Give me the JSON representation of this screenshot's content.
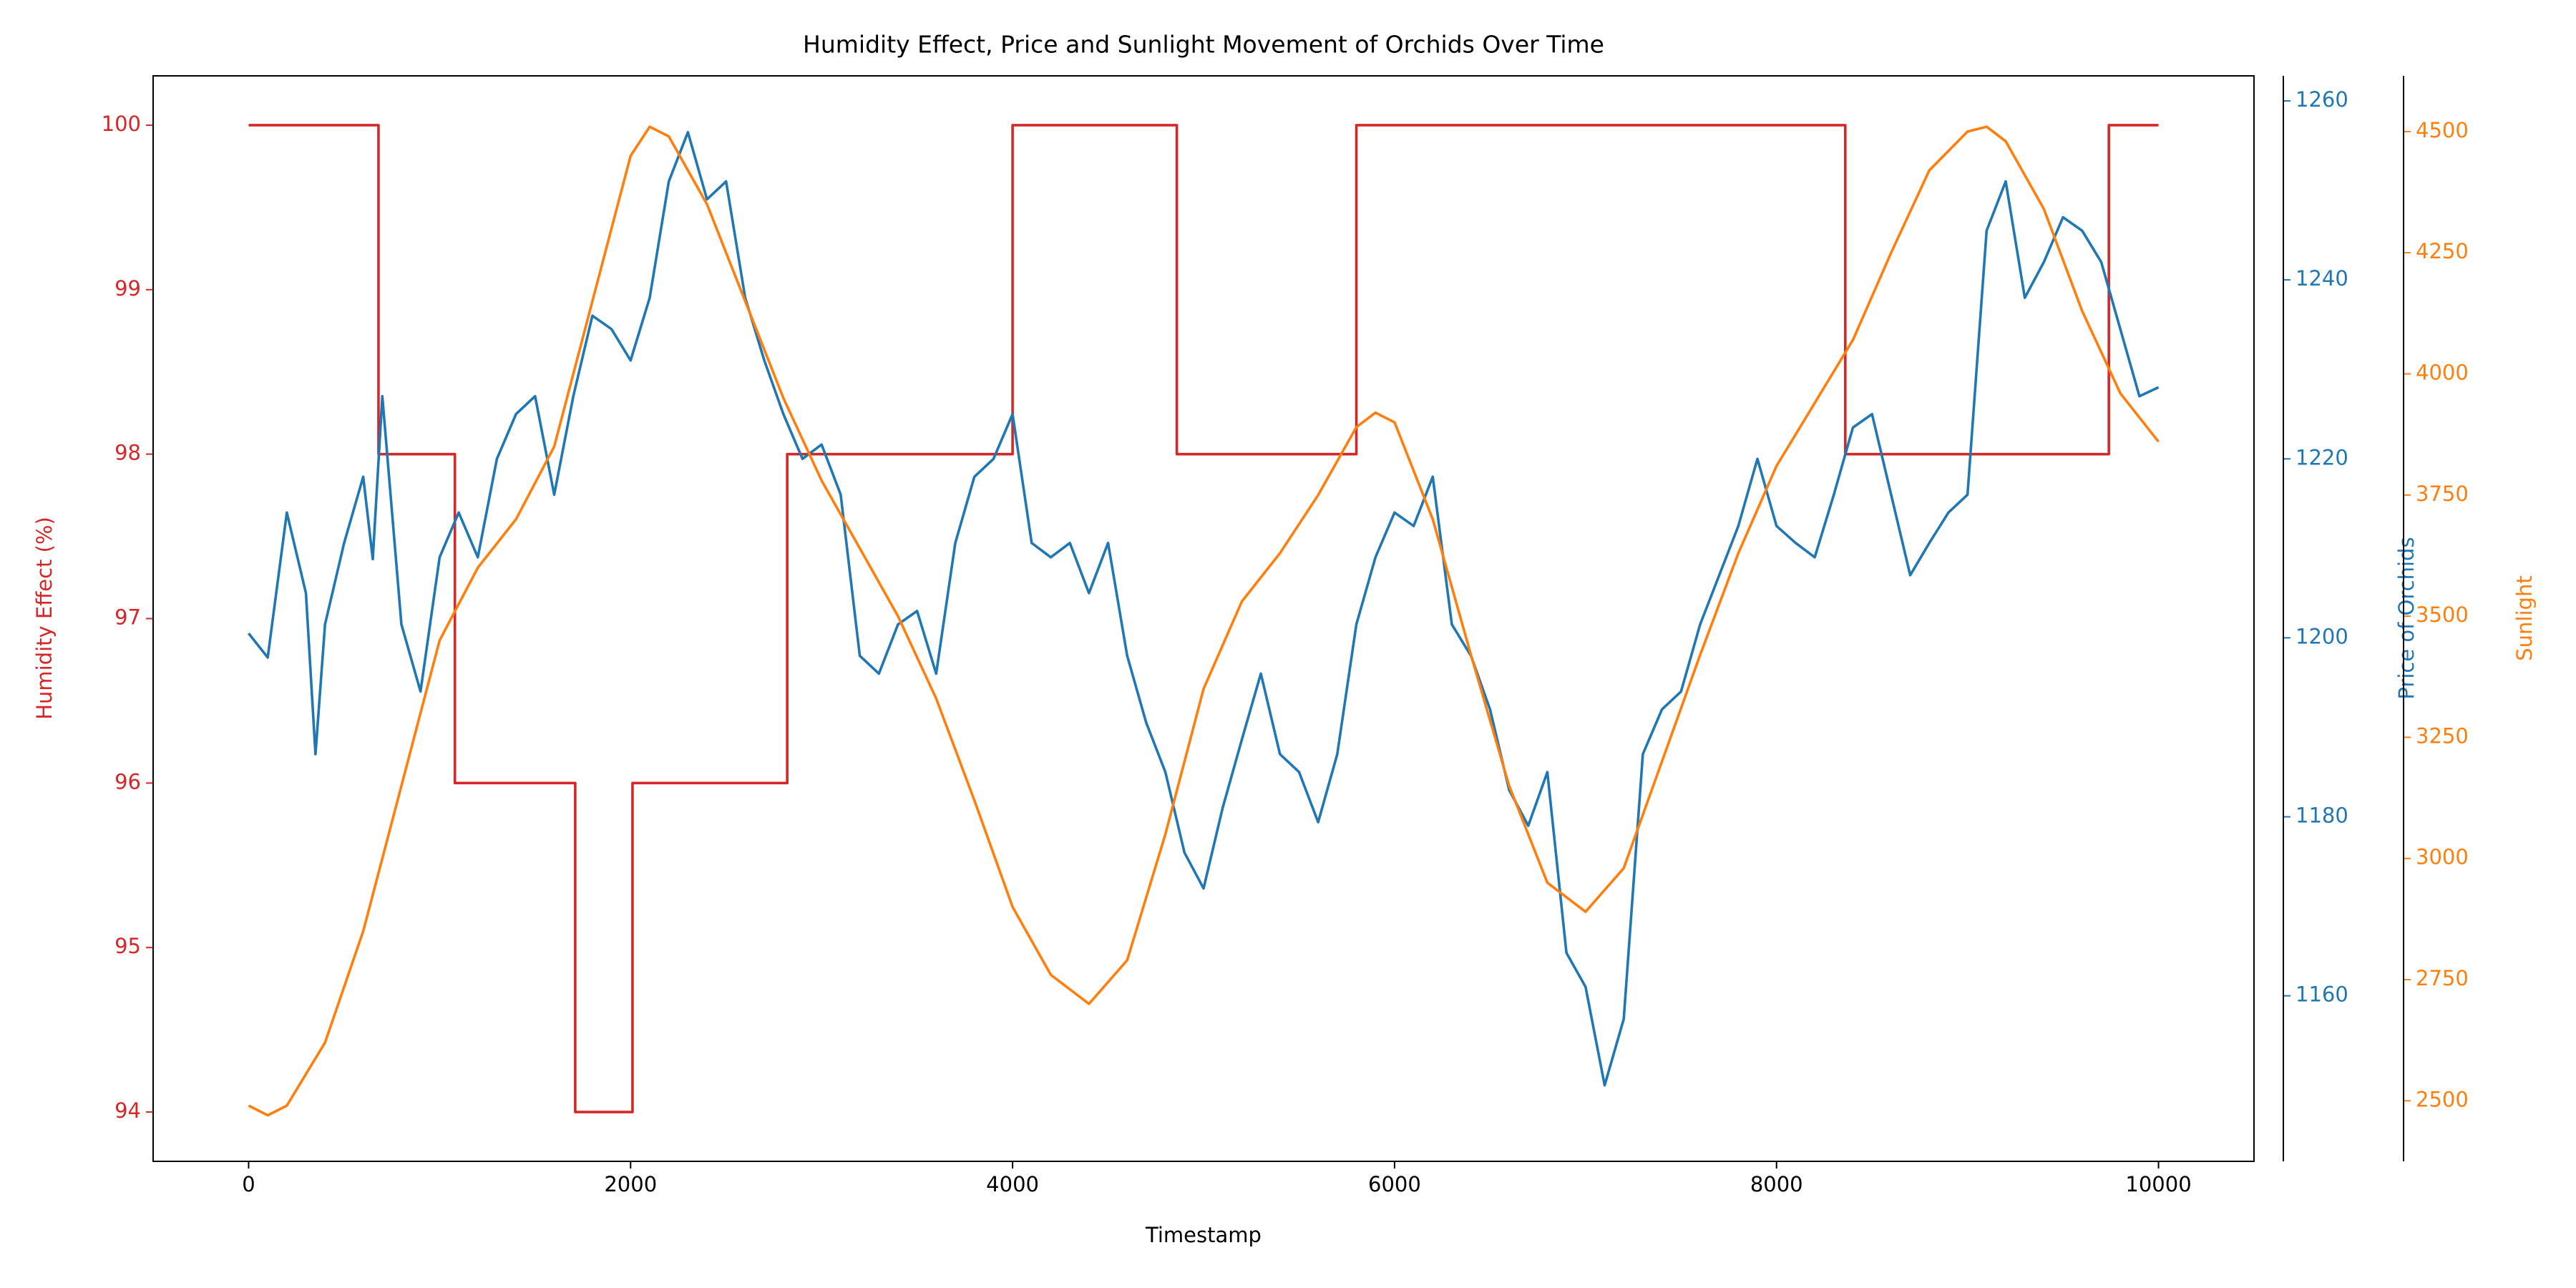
{
  "chart_data": {
    "type": "line",
    "title": "Humidity Effect, Price and Sunlight Movement of Orchids Over Time",
    "xlabel": "Timestamp",
    "ylabel": "Humidity Effect (%)",
    "y2label": "Price of Orchids",
    "y3label": "Sunlight",
    "xlim": [
      -500,
      10500
    ],
    "xticks": [
      0,
      2000,
      4000,
      6000,
      8000,
      10000
    ],
    "ylim": [
      93.7,
      100.3
    ],
    "yticks": [
      94,
      95,
      96,
      97,
      98,
      99,
      100
    ],
    "y2lim": [
      1141.5,
      1262.8
    ],
    "y2ticks": [
      1160,
      1180,
      1200,
      1220,
      1240,
      1260
    ],
    "y3lim": [
      2375,
      4615
    ],
    "y3ticks": [
      2500,
      2750,
      3000,
      3250,
      3500,
      3750,
      4000,
      4250,
      4500
    ],
    "series": [
      {
        "name": "Humidity Effect (%)",
        "color": "#d62728",
        "axis": "y",
        "drawstyle": "steps-post",
        "x": [
          0,
          680,
          1080,
          1710,
          2010,
          2820,
          4000,
          4860,
          5800,
          8360,
          9740,
          10000
        ],
        "values": [
          100,
          98,
          96,
          94,
          96,
          98,
          100,
          98,
          100,
          98,
          100,
          100
        ]
      },
      {
        "name": "Price of Orchids",
        "color": "#1f77b4",
        "axis": "y2",
        "x": [
          0,
          100,
          200,
          300,
          350,
          400,
          500,
          600,
          650,
          700,
          800,
          900,
          1000,
          1100,
          1200,
          1300,
          1400,
          1500,
          1600,
          1700,
          1800,
          1900,
          2000,
          2100,
          2200,
          2300,
          2400,
          2500,
          2600,
          2700,
          2800,
          2900,
          3000,
          3100,
          3200,
          3300,
          3400,
          3500,
          3600,
          3700,
          3800,
          3900,
          4000,
          4100,
          4200,
          4300,
          4400,
          4500,
          4600,
          4700,
          4800,
          4900,
          5000,
          5100,
          5200,
          5300,
          5400,
          5500,
          5600,
          5700,
          5800,
          5900,
          6000,
          6100,
          6200,
          6300,
          6400,
          6500,
          6600,
          6700,
          6800,
          6900,
          7000,
          7100,
          7200,
          7300,
          7400,
          7500,
          7600,
          7700,
          7800,
          7900,
          8000,
          8100,
          8200,
          8300,
          8400,
          8500,
          8600,
          8700,
          8800,
          8900,
          9000,
          9100,
          9200,
          9300,
          9400,
          9500,
          9600,
          9700,
          9800,
          9900,
          10000
        ],
        "values": [
          1200.5,
          1197.8,
          1214,
          1205,
          1187,
          1201.5,
          1210.6,
          1218,
          1208.8,
          1227,
          1201.5,
          1194,
          1209,
          1214,
          1209,
          1220,
          1225,
          1227,
          1216,
          1227,
          1236,
          1234.5,
          1231,
          1238,
          1251,
          1256.5,
          1249,
          1251,
          1238,
          1231,
          1225,
          1220,
          1221.6,
          1216,
          1198,
          1196,
          1201.5,
          1203,
          1196,
          1210.6,
          1218,
          1220,
          1225,
          1210.6,
          1209,
          1210.6,
          1205,
          1210.6,
          1198,
          1190.5,
          1185,
          1176,
          1172,
          1181,
          1188.6,
          1196,
          1187,
          1185,
          1179.4,
          1187,
          1201.5,
          1209,
          1214,
          1212.5,
          1218,
          1201.5,
          1198,
          1192,
          1183,
          1179,
          1185,
          1164.8,
          1161,
          1150,
          1157.4,
          1187,
          1192,
          1194,
          1201.5,
          1207,
          1212.5,
          1220,
          1212.5,
          1210.6,
          1209,
          1216,
          1223.5,
          1225,
          1216,
          1207,
          1210.6,
          1214,
          1216,
          1245.5,
          1251,
          1238,
          1242,
          1247,
          1245.5,
          1242,
          1234.5,
          1227,
          1228
        ]
      },
      {
        "name": "Sunlight",
        "color": "#ff7f0e",
        "axis": "y3",
        "x": [
          0,
          100,
          200,
          400,
          600,
          800,
          1000,
          1200,
          1400,
          1600,
          1800,
          2000,
          2100,
          2200,
          2400,
          2600,
          2800,
          3000,
          3200,
          3400,
          3600,
          3800,
          4000,
          4200,
          4400,
          4600,
          4800,
          5000,
          5200,
          5400,
          5600,
          5800,
          5900,
          6000,
          6200,
          6400,
          6600,
          6800,
          7000,
          7200,
          7400,
          7600,
          7800,
          8000,
          8200,
          8400,
          8600,
          8800,
          9000,
          9100,
          9200,
          9400,
          9600,
          9800,
          10000
        ],
        "values": [
          2490,
          2470,
          2490,
          2620,
          2850,
          3150,
          3450,
          3600,
          3700,
          3850,
          4150,
          4450,
          4510,
          4490,
          4350,
          4150,
          3950,
          3780,
          3640,
          3500,
          3330,
          3120,
          2900,
          2760,
          2700,
          2790,
          3050,
          3350,
          3530,
          3630,
          3750,
          3890,
          3920,
          3900,
          3700,
          3420,
          3150,
          2950,
          2890,
          2980,
          3200,
          3420,
          3630,
          3810,
          3940,
          4070,
          4250,
          4420,
          4500,
          4510,
          4480,
          4340,
          4130,
          3960,
          3860
        ]
      }
    ]
  }
}
